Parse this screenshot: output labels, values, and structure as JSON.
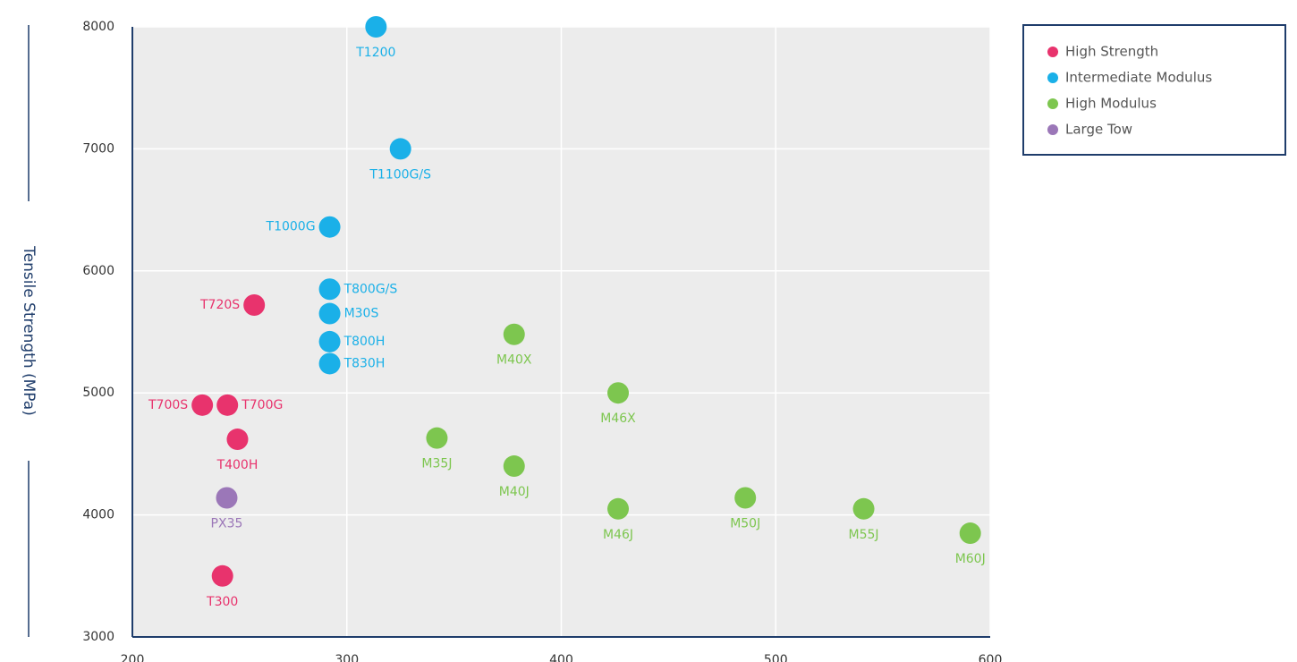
{
  "chart_data": {
    "type": "scatter",
    "y_label": "Tensile Strength (MPa)",
    "xlim": [
      200,
      600
    ],
    "xticks": [
      200,
      300,
      400,
      500,
      600
    ],
    "ylim": [
      3000,
      8000
    ],
    "yticks": [
      3000,
      4000,
      5000,
      6000,
      7000,
      8000
    ],
    "grid": true,
    "legend": "right",
    "series": [
      {
        "name": "High Strength",
        "color": "#e8336d",
        "x": [
          232.6,
          244.3,
          249,
          256.8,
          242
        ],
        "values": [
          4900,
          4900,
          4620,
          5720,
          3500
        ],
        "labels": [
          "T700S",
          "T700G",
          "T400H",
          "T720S",
          "T300"
        ]
      },
      {
        "name": "Intermediate Modulus",
        "color": "#1ab0e8",
        "x": [
          313.6,
          325,
          292,
          292,
          292,
          292,
          292
        ],
        "values": [
          8000,
          7000,
          6360,
          5850,
          5650,
          5420,
          5240
        ],
        "labels": [
          "T1200",
          "T1100G/S",
          "T1000G",
          "T800G/S",
          "M30S",
          "T800H",
          "T830H"
        ]
      },
      {
        "name": "High Modulus",
        "color": "#7dc64f",
        "x": [
          378,
          426.5,
          342,
          378,
          426.5,
          485.8,
          541,
          590.7
        ],
        "values": [
          5480,
          5000,
          4630,
          4400,
          4050,
          4140,
          4050,
          3850
        ],
        "labels": [
          "M40X",
          "M46X",
          "M35J",
          "M40J",
          "M46J",
          "M50J",
          "M55J",
          "M60J"
        ]
      },
      {
        "name": "Large Tow",
        "color": "#9b77b8",
        "x": [
          244
        ],
        "values": [
          4140
        ],
        "labels": [
          "PX35"
        ]
      }
    ]
  }
}
